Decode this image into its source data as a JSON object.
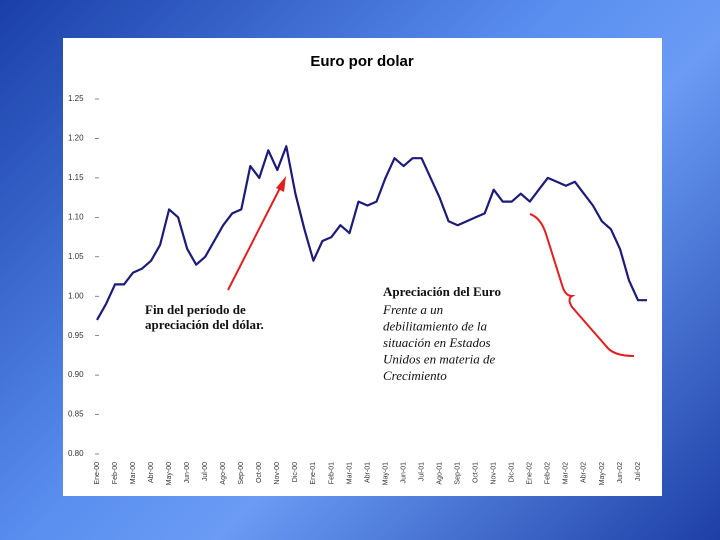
{
  "chart_data": {
    "type": "line",
    "title": "Euro por dolar",
    "categories": [
      "Ene-00",
      null,
      "Feb-00",
      null,
      "Mar-00",
      null,
      "Abr-00",
      null,
      "May-00",
      null,
      "Jun-00",
      null,
      "Jul-00",
      null,
      "Ago-00",
      null,
      "Sep-00",
      null,
      "Oct-00",
      null,
      "Nov-00",
      null,
      "Dic-00",
      null,
      "Ene-01",
      null,
      "Feb-01",
      null,
      "Mar-01",
      null,
      "Abr-01",
      null,
      "May-01",
      null,
      "Jun-01",
      null,
      "Jul-01",
      null,
      "Ago-01",
      null,
      "Sep-01",
      null,
      "Oct-01",
      null,
      "Nov-01",
      null,
      "Dic-01",
      null,
      "Ene-02",
      null,
      "Feb-02",
      null,
      "Mar-02",
      null,
      "Abr-02",
      null,
      "May-02",
      null,
      "Jun-02",
      null,
      "Jul-02",
      null
    ],
    "values": [
      0.97,
      0.99,
      1.015,
      1.015,
      1.03,
      1.035,
      1.045,
      1.065,
      1.11,
      1.1,
      1.06,
      1.04,
      1.05,
      1.07,
      1.09,
      1.105,
      1.11,
      1.165,
      1.15,
      1.185,
      1.16,
      1.19,
      1.13,
      1.085,
      1.045,
      1.07,
      1.075,
      1.09,
      1.08,
      1.12,
      1.115,
      1.12,
      1.15,
      1.175,
      1.165,
      1.175,
      1.175,
      1.15,
      1.125,
      1.095,
      1.09,
      1.095,
      1.1,
      1.105,
      1.135,
      1.12,
      1.12,
      1.13,
      1.12,
      1.135,
      1.15,
      1.145,
      1.14,
      1.145,
      1.13,
      1.115,
      1.095,
      1.085,
      1.06,
      1.02,
      0.995,
      0.995
    ],
    "color": "#1c1c78",
    "ylim": [
      0.8,
      1.25
    ],
    "yticks": [
      {
        "value": 0.8,
        "label": "0.80"
      },
      {
        "value": 0.85,
        "label": "0.85"
      },
      {
        "value": 0.9,
        "label": "0.90"
      },
      {
        "value": 0.95,
        "label": "0.95"
      },
      {
        "value": 1.0,
        "label": "1.00"
      },
      {
        "value": 1.05,
        "label": "1.05"
      },
      {
        "value": 1.1,
        "label": "1.10"
      },
      {
        "value": 1.15,
        "label": "1.15"
      },
      {
        "value": 1.2,
        "label": "1.20"
      },
      {
        "value": 1.25,
        "label": "1.25"
      }
    ],
    "grid": false,
    "annotations": [
      {
        "lines": [
          "Fin del período de",
          "apreciación del dólar."
        ]
      },
      {
        "title": "Apreciación del Euro",
        "lines": [
          "Frente a un",
          "debilitamiento de la",
          "situación en Estados",
          "Unidos en materia de",
          "Crecimiento"
        ]
      }
    ]
  }
}
